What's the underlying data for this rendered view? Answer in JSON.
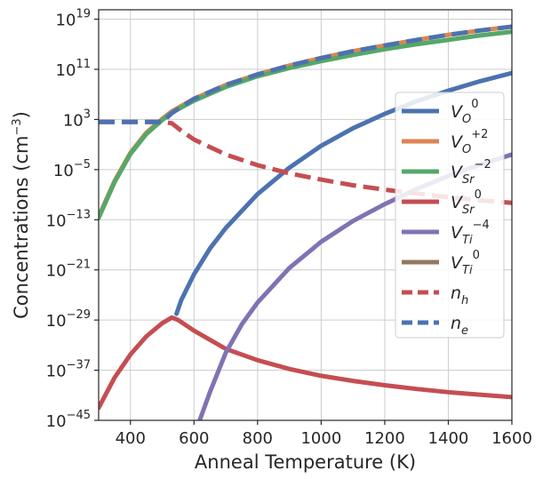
{
  "chart_data": {
    "type": "line",
    "title": "",
    "xlabel": "Anneal Temperature (K)",
    "ylabel": "Concentrations (cm",
    "ylabel_exp": "−3",
    "ylabel_close": ")",
    "xlim": [
      300,
      1600
    ],
    "ylim_log10": [
      -45,
      20.5
    ],
    "yscale": "log",
    "grid": true,
    "legend_position": "center-right",
    "x_ticks": [
      {
        "value": 400,
        "label": "400"
      },
      {
        "value": 600,
        "label": "600"
      },
      {
        "value": 800,
        "label": "800"
      },
      {
        "value": 1000,
        "label": "1000"
      },
      {
        "value": 1200,
        "label": "1200"
      },
      {
        "value": 1400,
        "label": "1400"
      },
      {
        "value": 1600,
        "label": "1600"
      }
    ],
    "y_ticks": [
      {
        "value": 19,
        "base": "10",
        "exp": "19"
      },
      {
        "value": 11,
        "base": "10",
        "exp": "11"
      },
      {
        "value": 3,
        "base": "10",
        "exp": "3"
      },
      {
        "value": -5,
        "base": "10",
        "exp": "−5"
      },
      {
        "value": -13,
        "base": "10",
        "exp": "−13"
      },
      {
        "value": -21,
        "base": "10",
        "exp": "−21"
      },
      {
        "value": -29,
        "base": "10",
        "exp": "−29"
      },
      {
        "value": -37,
        "base": "10",
        "exp": "−37"
      },
      {
        "value": -45,
        "base": "10",
        "exp": "−45"
      }
    ],
    "series": [
      {
        "name": "V_O^0",
        "base": "V",
        "sub": "O",
        "sup": "0",
        "color": "#4c72b0",
        "dash": false,
        "x": [
          545,
          560,
          600,
          650,
          700,
          800,
          900,
          1000,
          1100,
          1200,
          1300,
          1400,
          1500,
          1600
        ],
        "y": [
          -28.0,
          -25.8,
          -21.7,
          -17.6,
          -14.3,
          -8.9,
          -4.7,
          -1.2,
          1.6,
          3.9,
          5.9,
          7.6,
          9.1,
          10.4
        ]
      },
      {
        "name": "V_O^+2",
        "base": "V",
        "sub": "O",
        "sup": "+2",
        "color": "#dd8452",
        "dash": false,
        "x": [
          300,
          350,
          400,
          450,
          500,
          530,
          600,
          700,
          800,
          900,
          1000,
          1100,
          1200,
          1300,
          1400,
          1500,
          1600
        ],
        "y": [
          -12.5,
          -6.8,
          -2.3,
          0.9,
          3.1,
          4.3,
          6.3,
          8.5,
          10.2,
          11.6,
          12.8,
          13.9,
          14.8,
          15.7,
          16.5,
          17.2,
          17.8
        ]
      },
      {
        "name": "V_Sr^-2",
        "base": "V",
        "sub": "Sr",
        "sup": "−2",
        "color": "#55a868",
        "dash": false,
        "x": [
          300,
          350,
          400,
          450,
          500,
          530,
          600,
          700,
          800,
          900,
          1000,
          1100,
          1200,
          1300,
          1400,
          1500,
          1600
        ],
        "y": [
          -12.7,
          -7.0,
          -2.5,
          0.7,
          2.9,
          4.1,
          6.0,
          8.2,
          9.9,
          11.2,
          12.3,
          13.3,
          14.2,
          15.0,
          15.7,
          16.4,
          17.0
        ]
      },
      {
        "name": "V_Sr^0",
        "base": "V",
        "sub": "Sr",
        "sup": "0",
        "color": "#c44e52",
        "dash": false,
        "x": [
          300,
          350,
          400,
          450,
          500,
          530,
          550,
          600,
          700,
          800,
          900,
          1000,
          1100,
          1200,
          1300,
          1400,
          1500,
          1600
        ],
        "y": [
          -43.0,
          -38.2,
          -34.5,
          -31.6,
          -29.5,
          -28.6,
          -29.0,
          -30.7,
          -33.6,
          -35.4,
          -36.8,
          -37.9,
          -38.7,
          -39.4,
          -40.0,
          -40.5,
          -40.9,
          -41.3
        ]
      },
      {
        "name": "V_Ti^-4",
        "base": "V",
        "sub": "Ti",
        "sup": "−4",
        "color": "#8172b3",
        "dash": false,
        "x": [
          618,
          650,
          700,
          750,
          800,
          900,
          1000,
          1100,
          1200,
          1300,
          1400,
          1500,
          1600
        ],
        "y": [
          -45.0,
          -40.5,
          -34.2,
          -29.7,
          -26.2,
          -20.7,
          -16.5,
          -13.2,
          -10.5,
          -8.1,
          -6.0,
          -4.2,
          -2.6
        ]
      },
      {
        "name": "V_Ti^0",
        "base": "V",
        "sub": "Ti",
        "sup": "0",
        "color": "#937860",
        "dash": false,
        "x": [],
        "y": []
      },
      {
        "name": "n_h",
        "base": "n",
        "sub": "h",
        "sup": "",
        "color": "#c44e52",
        "dash": true,
        "x": [
          300,
          400,
          500,
          530,
          560,
          600,
          700,
          800,
          900,
          1000,
          1100,
          1200,
          1300,
          1400,
          1500,
          1600
        ],
        "y": [
          2.6,
          2.6,
          2.6,
          2.4,
          1.2,
          -0.2,
          -2.6,
          -4.3,
          -5.6,
          -6.6,
          -7.5,
          -8.2,
          -8.8,
          -9.4,
          -9.9,
          -10.3
        ]
      },
      {
        "name": "n_e",
        "base": "n",
        "sub": "e",
        "sup": "",
        "color": "#4c72b0",
        "dash": true,
        "x": [
          300,
          400,
          500,
          530,
          560,
          600,
          700,
          800,
          900,
          1000,
          1100,
          1200,
          1300,
          1400,
          1500,
          1600
        ],
        "y": [
          2.6,
          2.6,
          2.6,
          4.0,
          5.0,
          6.3,
          8.5,
          10.2,
          11.6,
          12.8,
          13.9,
          14.8,
          15.7,
          16.5,
          17.2,
          17.8
        ]
      }
    ]
  }
}
